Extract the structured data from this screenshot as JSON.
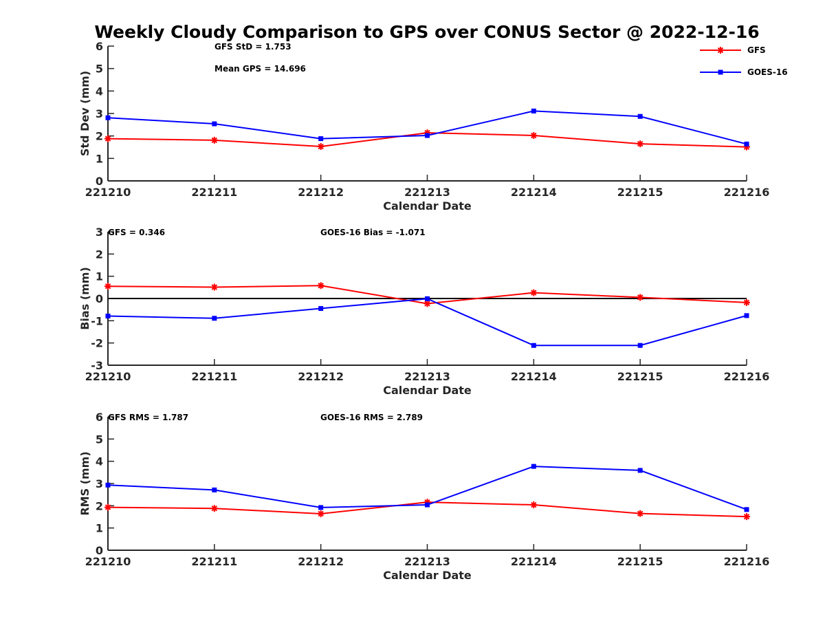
{
  "chart_data": {
    "type": "line",
    "title": "Weekly Cloudy Comparison to GPS over CONUS Sector @ 2022-12-16",
    "categories": [
      "221210",
      "221211",
      "221212",
      "221213",
      "221214",
      "221215",
      "221216"
    ],
    "legend": {
      "placement": "top-right",
      "entries": [
        {
          "name": "GFS",
          "color": "#ff0000",
          "marker": "asterisk"
        },
        {
          "name": "GOES-16",
          "color": "#0000ff",
          "marker": "square"
        }
      ]
    },
    "panels": [
      {
        "id": "std",
        "ylabel": "Std Dev (mm)",
        "xlabel": "Calendar Date",
        "ylim": [
          0,
          6
        ],
        "yticks": [
          "0",
          "1",
          "2",
          "3",
          "4",
          "5",
          "6"
        ],
        "zero_line": false,
        "annotations": [
          "GFS StD = 1.753",
          "Mean GPS = 14.696"
        ],
        "series": [
          {
            "name": "GFS",
            "color": "#ff0000",
            "values": [
              1.88,
              1.81,
              1.53,
              2.14,
              2.02,
              1.65,
              1.51
            ]
          },
          {
            "name": "GOES-16",
            "color": "#0000ff",
            "values": [
              2.81,
              2.54,
              1.88,
              2.02,
              3.11,
              2.87,
              1.64
            ]
          }
        ]
      },
      {
        "id": "bias",
        "ylabel": "Bias (mm)",
        "xlabel": "Calendar Date",
        "ylim": [
          -3,
          3
        ],
        "yticks": [
          "-3",
          "-2",
          "-1",
          "0",
          "1",
          "2",
          "3"
        ],
        "zero_line": true,
        "annotations": [
          "GFS = 0.346",
          "GOES-16 Bias  = -1.071"
        ],
        "series": [
          {
            "name": "GFS",
            "color": "#ff0000",
            "values": [
              0.55,
              0.51,
              0.58,
              -0.23,
              0.26,
              0.05,
              -0.18
            ]
          },
          {
            "name": "GOES-16",
            "color": "#0000ff",
            "values": [
              -0.79,
              -0.89,
              -0.45,
              -0.01,
              -2.11,
              -2.11,
              -0.77
            ]
          }
        ]
      },
      {
        "id": "rms",
        "ylabel": "RMS (mm)",
        "xlabel": "Calendar Date",
        "ylim": [
          0,
          6
        ],
        "yticks": [
          "0",
          "1",
          "2",
          "3",
          "4",
          "5",
          "6"
        ],
        "zero_line": false,
        "annotations": [
          "GFS RMS = 1.787",
          "GOES-16 RMS = 2.789"
        ],
        "series": [
          {
            "name": "GFS",
            "color": "#ff0000",
            "values": [
              1.93,
              1.88,
              1.64,
              2.16,
              2.04,
              1.65,
              1.51
            ]
          },
          {
            "name": "GOES-16",
            "color": "#0000ff",
            "values": [
              2.93,
              2.71,
              1.92,
              2.04,
              3.77,
              3.59,
              1.83
            ]
          }
        ]
      }
    ]
  }
}
